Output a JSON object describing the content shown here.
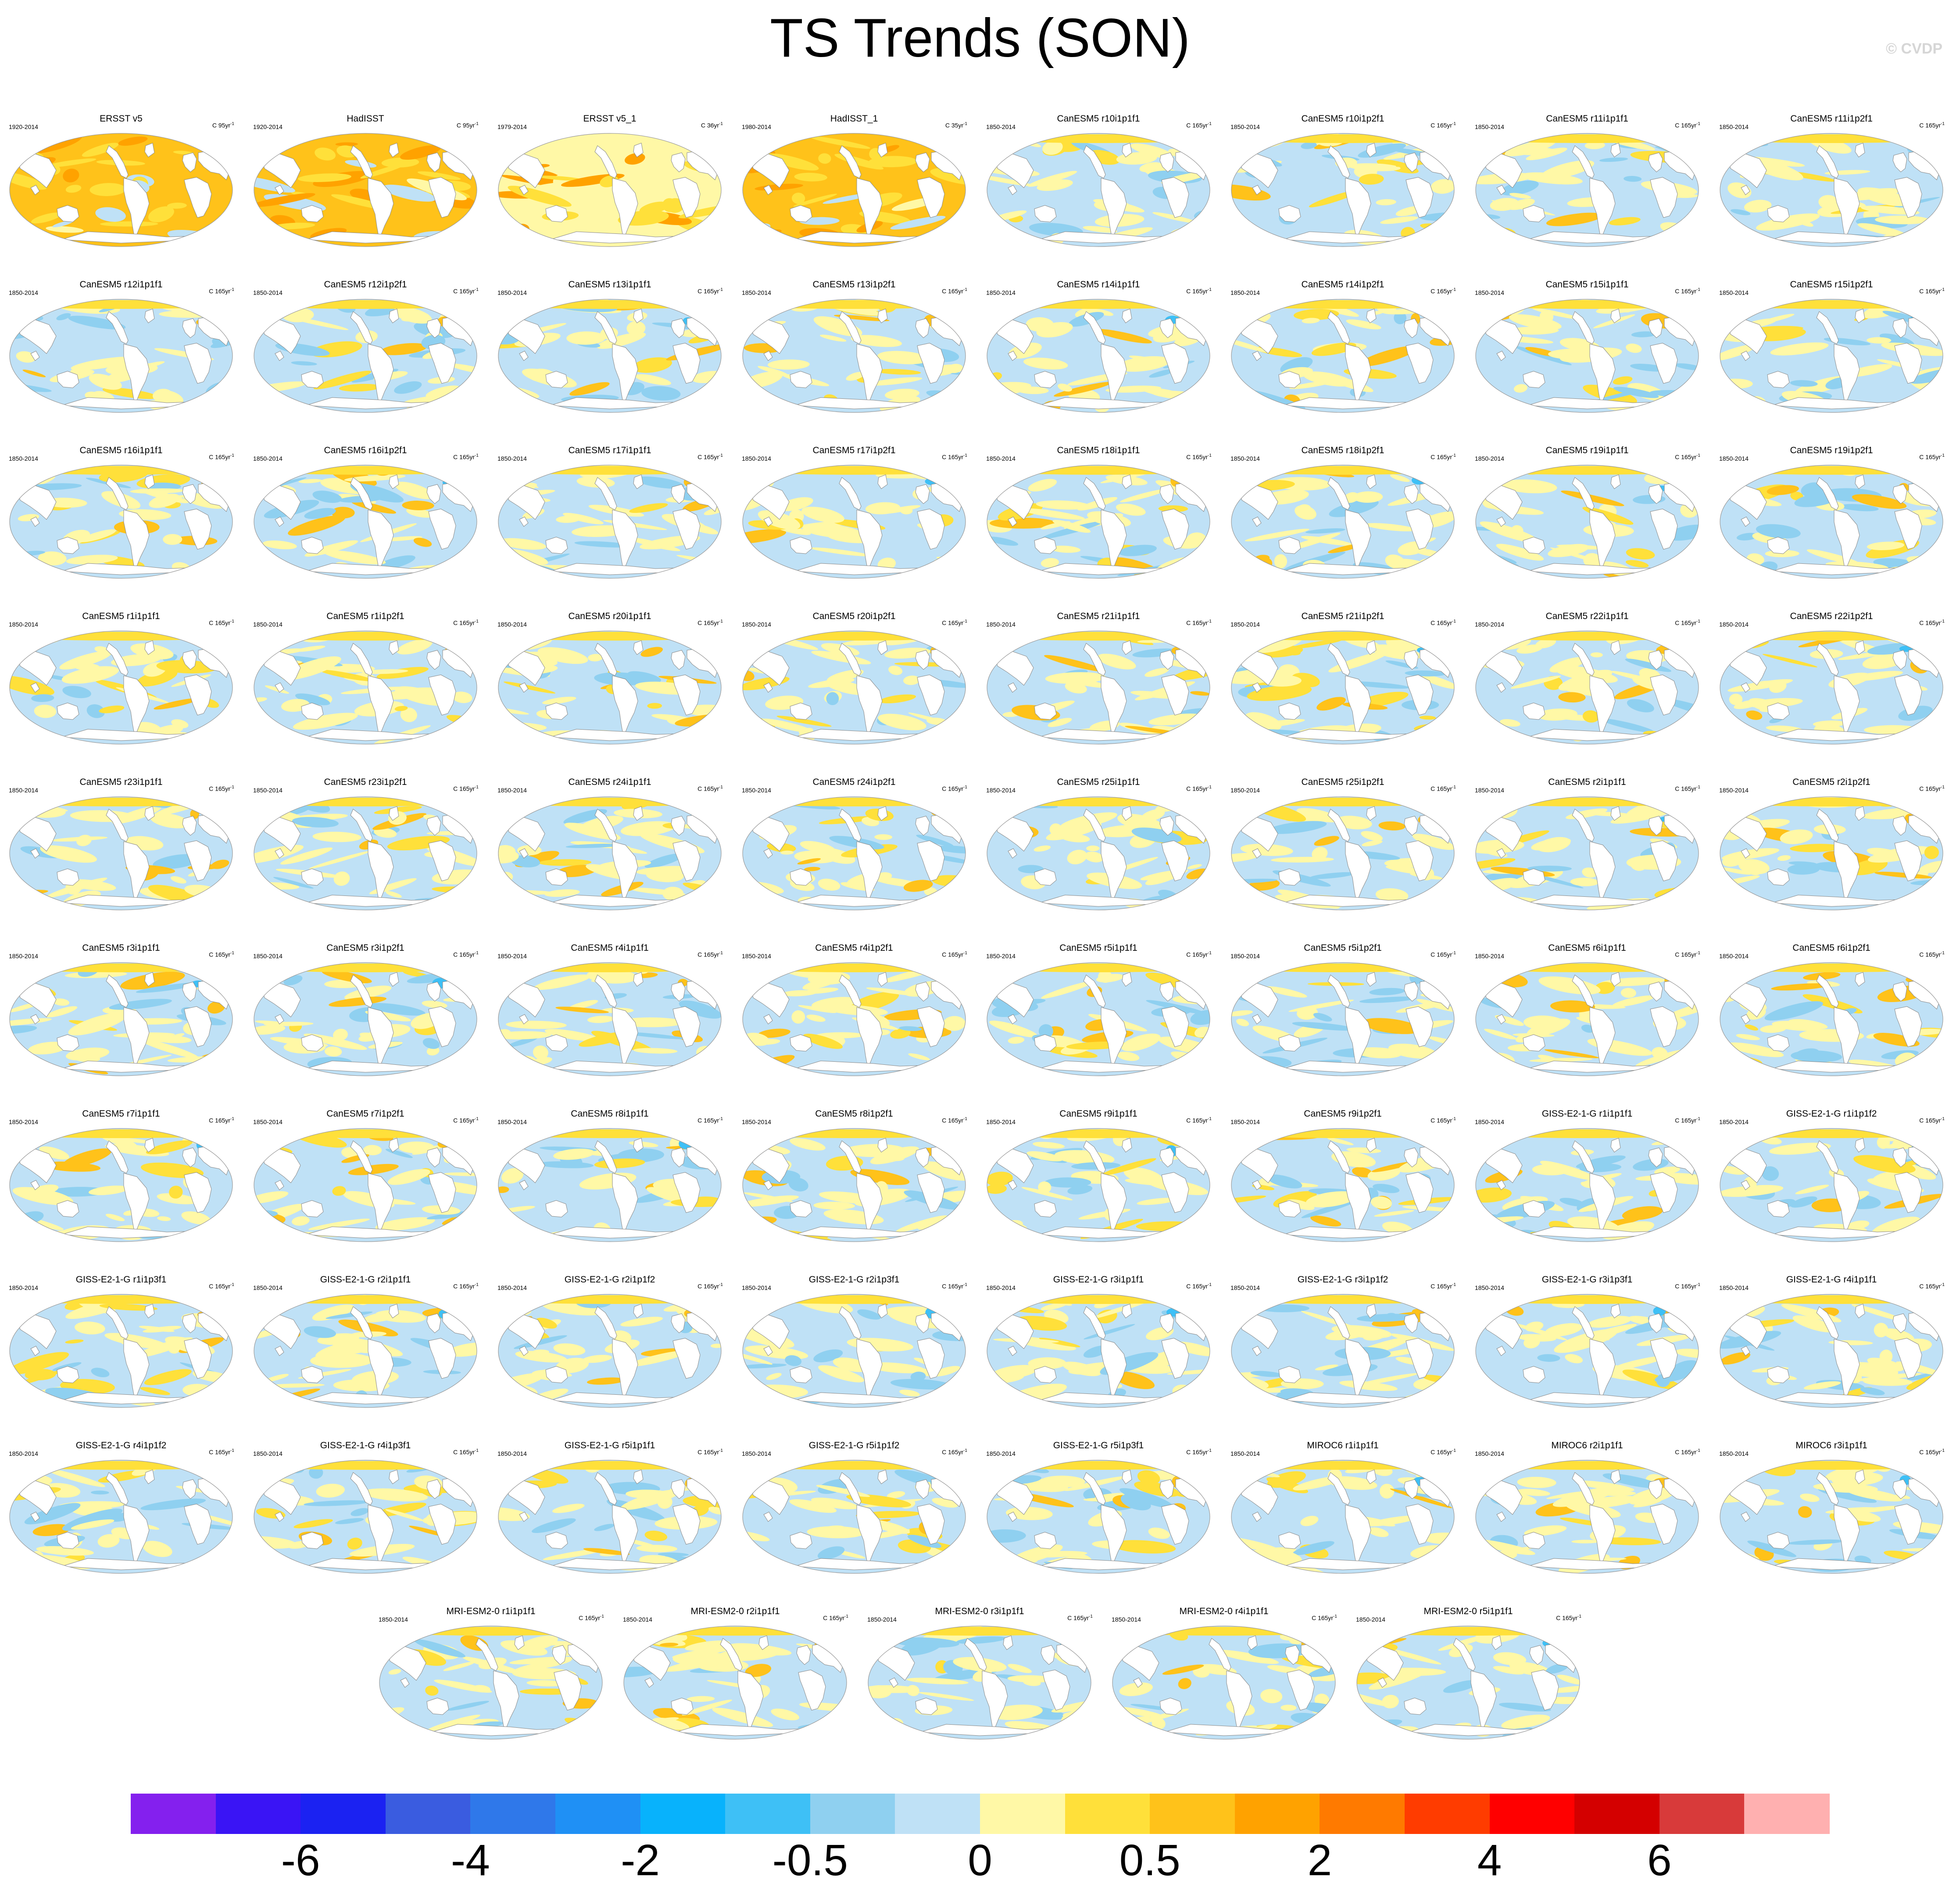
{
  "title": "TS Trends (SON)",
  "watermark": "© CVDP",
  "colors": {
    "land": "#ffffff",
    "coast": "#8a8a8a",
    "colorbar": [
      "#8420ee",
      "#3a14f5",
      "#1b22f2",
      "#3a5ce0",
      "#2f78ea",
      "#1f90f5",
      "#08b2fc",
      "#3ec0f6",
      "#8fd0f0",
      "#bfe1f6",
      "#fff8a6",
      "#ffe03a",
      "#ffc21a",
      "#ffa200",
      "#ff7a00",
      "#ff3c00",
      "#ff0000",
      "#d40000",
      "#d83a3a",
      "#ffb0b0"
    ]
  },
  "colorbar_labels": [
    "-6",
    "-4",
    "-2",
    "-0.5",
    "0",
    "0.5",
    "2",
    "4",
    "6"
  ],
  "panels": [
    {
      "title": "ERSST v5",
      "years": "1920-2014",
      "units": "C 95yr",
      "kind": "obs"
    },
    {
      "title": "HadISST",
      "years": "1920-2014",
      "units": "C 95yr",
      "kind": "obs"
    },
    {
      "title": "ERSST v5_1",
      "years": "1979-2014",
      "units": "C 36yr",
      "kind": "obs"
    },
    {
      "title": "HadISST_1",
      "years": "1980-2014",
      "units": "C 35yr",
      "kind": "obs"
    },
    {
      "title": "CanESM5 r10i1p1f1",
      "years": "1850-2014",
      "units": "C 165yr"
    },
    {
      "title": "CanESM5 r10i1p2f1",
      "years": "1850-2014",
      "units": "C 165yr"
    },
    {
      "title": "CanESM5 r11i1p1f1",
      "years": "1850-2014",
      "units": "C 165yr"
    },
    {
      "title": "CanESM5 r11i1p2f1",
      "years": "1850-2014",
      "units": "C 165yr"
    },
    {
      "title": "CanESM5 r12i1p1f1",
      "years": "1850-2014",
      "units": "C 165yr"
    },
    {
      "title": "CanESM5 r12i1p2f1",
      "years": "1850-2014",
      "units": "C 165yr"
    },
    {
      "title": "CanESM5 r13i1p1f1",
      "years": "1850-2014",
      "units": "C 165yr"
    },
    {
      "title": "CanESM5 r13i1p2f1",
      "years": "1850-2014",
      "units": "C 165yr"
    },
    {
      "title": "CanESM5 r14i1p1f1",
      "years": "1850-2014",
      "units": "C 165yr"
    },
    {
      "title": "CanESM5 r14i1p2f1",
      "years": "1850-2014",
      "units": "C 165yr"
    },
    {
      "title": "CanESM5 r15i1p1f1",
      "years": "1850-2014",
      "units": "C 165yr"
    },
    {
      "title": "CanESM5 r15i1p2f1",
      "years": "1850-2014",
      "units": "C 165yr"
    },
    {
      "title": "CanESM5 r16i1p1f1",
      "years": "1850-2014",
      "units": "C 165yr"
    },
    {
      "title": "CanESM5 r16i1p2f1",
      "years": "1850-2014",
      "units": "C 165yr"
    },
    {
      "title": "CanESM5 r17i1p1f1",
      "years": "1850-2014",
      "units": "C 165yr"
    },
    {
      "title": "CanESM5 r17i1p2f1",
      "years": "1850-2014",
      "units": "C 165yr"
    },
    {
      "title": "CanESM5 r18i1p1f1",
      "years": "1850-2014",
      "units": "C 165yr"
    },
    {
      "title": "CanESM5 r18i1p2f1",
      "years": "1850-2014",
      "units": "C 165yr"
    },
    {
      "title": "CanESM5 r19i1p1f1",
      "years": "1850-2014",
      "units": "C 165yr"
    },
    {
      "title": "CanESM5 r19i1p2f1",
      "years": "1850-2014",
      "units": "C 165yr"
    },
    {
      "title": "CanESM5 r1i1p1f1",
      "years": "1850-2014",
      "units": "C 165yr"
    },
    {
      "title": "CanESM5 r1i1p2f1",
      "years": "1850-2014",
      "units": "C 165yr"
    },
    {
      "title": "CanESM5 r20i1p1f1",
      "years": "1850-2014",
      "units": "C 165yr"
    },
    {
      "title": "CanESM5 r20i1p2f1",
      "years": "1850-2014",
      "units": "C 165yr"
    },
    {
      "title": "CanESM5 r21i1p1f1",
      "years": "1850-2014",
      "units": "C 165yr"
    },
    {
      "title": "CanESM5 r21i1p2f1",
      "years": "1850-2014",
      "units": "C 165yr"
    },
    {
      "title": "CanESM5 r22i1p1f1",
      "years": "1850-2014",
      "units": "C 165yr"
    },
    {
      "title": "CanESM5 r22i1p2f1",
      "years": "1850-2014",
      "units": "C 165yr"
    },
    {
      "title": "CanESM5 r23i1p1f1",
      "years": "1850-2014",
      "units": "C 165yr"
    },
    {
      "title": "CanESM5 r23i1p2f1",
      "years": "1850-2014",
      "units": "C 165yr"
    },
    {
      "title": "CanESM5 r24i1p1f1",
      "years": "1850-2014",
      "units": "C 165yr"
    },
    {
      "title": "CanESM5 r24i1p2f1",
      "years": "1850-2014",
      "units": "C 165yr"
    },
    {
      "title": "CanESM5 r25i1p1f1",
      "years": "1850-2014",
      "units": "C 165yr"
    },
    {
      "title": "CanESM5 r25i1p2f1",
      "years": "1850-2014",
      "units": "C 165yr"
    },
    {
      "title": "CanESM5 r2i1p1f1",
      "years": "1850-2014",
      "units": "C 165yr"
    },
    {
      "title": "CanESM5 r2i1p2f1",
      "years": "1850-2014",
      "units": "C 165yr"
    },
    {
      "title": "CanESM5 r3i1p1f1",
      "years": "1850-2014",
      "units": "C 165yr"
    },
    {
      "title": "CanESM5 r3i1p2f1",
      "years": "1850-2014",
      "units": "C 165yr"
    },
    {
      "title": "CanESM5 r4i1p1f1",
      "years": "1850-2014",
      "units": "C 165yr"
    },
    {
      "title": "CanESM5 r4i1p2f1",
      "years": "1850-2014",
      "units": "C 165yr"
    },
    {
      "title": "CanESM5 r5i1p1f1",
      "years": "1850-2014",
      "units": "C 165yr"
    },
    {
      "title": "CanESM5 r5i1p2f1",
      "years": "1850-2014",
      "units": "C 165yr"
    },
    {
      "title": "CanESM5 r6i1p1f1",
      "years": "1850-2014",
      "units": "C 165yr"
    },
    {
      "title": "CanESM5 r6i1p2f1",
      "years": "1850-2014",
      "units": "C 165yr"
    },
    {
      "title": "CanESM5 r7i1p1f1",
      "years": "1850-2014",
      "units": "C 165yr"
    },
    {
      "title": "CanESM5 r7i1p2f1",
      "years": "1850-2014",
      "units": "C 165yr"
    },
    {
      "title": "CanESM5 r8i1p1f1",
      "years": "1850-2014",
      "units": "C 165yr"
    },
    {
      "title": "CanESM5 r8i1p2f1",
      "years": "1850-2014",
      "units": "C 165yr"
    },
    {
      "title": "CanESM5 r9i1p1f1",
      "years": "1850-2014",
      "units": "C 165yr"
    },
    {
      "title": "CanESM5 r9i1p2f1",
      "years": "1850-2014",
      "units": "C 165yr"
    },
    {
      "title": "GISS-E2-1-G r1i1p1f1",
      "years": "1850-2014",
      "units": "C 165yr"
    },
    {
      "title": "GISS-E2-1-G r1i1p1f2",
      "years": "1850-2014",
      "units": "C 165yr"
    },
    {
      "title": "GISS-E2-1-G r1i1p3f1",
      "years": "1850-2014",
      "units": "C 165yr"
    },
    {
      "title": "GISS-E2-1-G r2i1p1f1",
      "years": "1850-2014",
      "units": "C 165yr"
    },
    {
      "title": "GISS-E2-1-G r2i1p1f2",
      "years": "1850-2014",
      "units": "C 165yr"
    },
    {
      "title": "GISS-E2-1-G r2i1p3f1",
      "years": "1850-2014",
      "units": "C 165yr"
    },
    {
      "title": "GISS-E2-1-G r3i1p1f1",
      "years": "1850-2014",
      "units": "C 165yr"
    },
    {
      "title": "GISS-E2-1-G r3i1p1f2",
      "years": "1850-2014",
      "units": "C 165yr"
    },
    {
      "title": "GISS-E2-1-G r3i1p3f1",
      "years": "1850-2014",
      "units": "C 165yr"
    },
    {
      "title": "GISS-E2-1-G r4i1p1f1",
      "years": "1850-2014",
      "units": "C 165yr"
    },
    {
      "title": "GISS-E2-1-G r4i1p1f2",
      "years": "1850-2014",
      "units": "C 165yr"
    },
    {
      "title": "GISS-E2-1-G r4i1p3f1",
      "years": "1850-2014",
      "units": "C 165yr"
    },
    {
      "title": "GISS-E2-1-G r5i1p1f1",
      "years": "1850-2014",
      "units": "C 165yr"
    },
    {
      "title": "GISS-E2-1-G r5i1p1f2",
      "years": "1850-2014",
      "units": "C 165yr"
    },
    {
      "title": "GISS-E2-1-G r5i1p3f1",
      "years": "1850-2014",
      "units": "C 165yr"
    },
    {
      "title": "MIROC6 r1i1p1f1",
      "years": "1850-2014",
      "units": "C 165yr"
    },
    {
      "title": "MIROC6 r2i1p1f1",
      "years": "1850-2014",
      "units": "C 165yr"
    },
    {
      "title": "MIROC6 r3i1p1f1",
      "years": "1850-2014",
      "units": "C 165yr"
    },
    {
      "title": "MRI-ESM2-0 r1i1p1f1",
      "years": "1850-2014",
      "units": "C 165yr"
    },
    {
      "title": "MRI-ESM2-0 r2i1p1f1",
      "years": "1850-2014",
      "units": "C 165yr"
    },
    {
      "title": "MRI-ESM2-0 r3i1p1f1",
      "years": "1850-2014",
      "units": "C 165yr"
    },
    {
      "title": "MRI-ESM2-0 r4i1p1f1",
      "years": "1850-2014",
      "units": "C 165yr"
    },
    {
      "title": "MRI-ESM2-0 r5i1p1f1",
      "years": "1850-2014",
      "units": "C 165yr"
    }
  ]
}
